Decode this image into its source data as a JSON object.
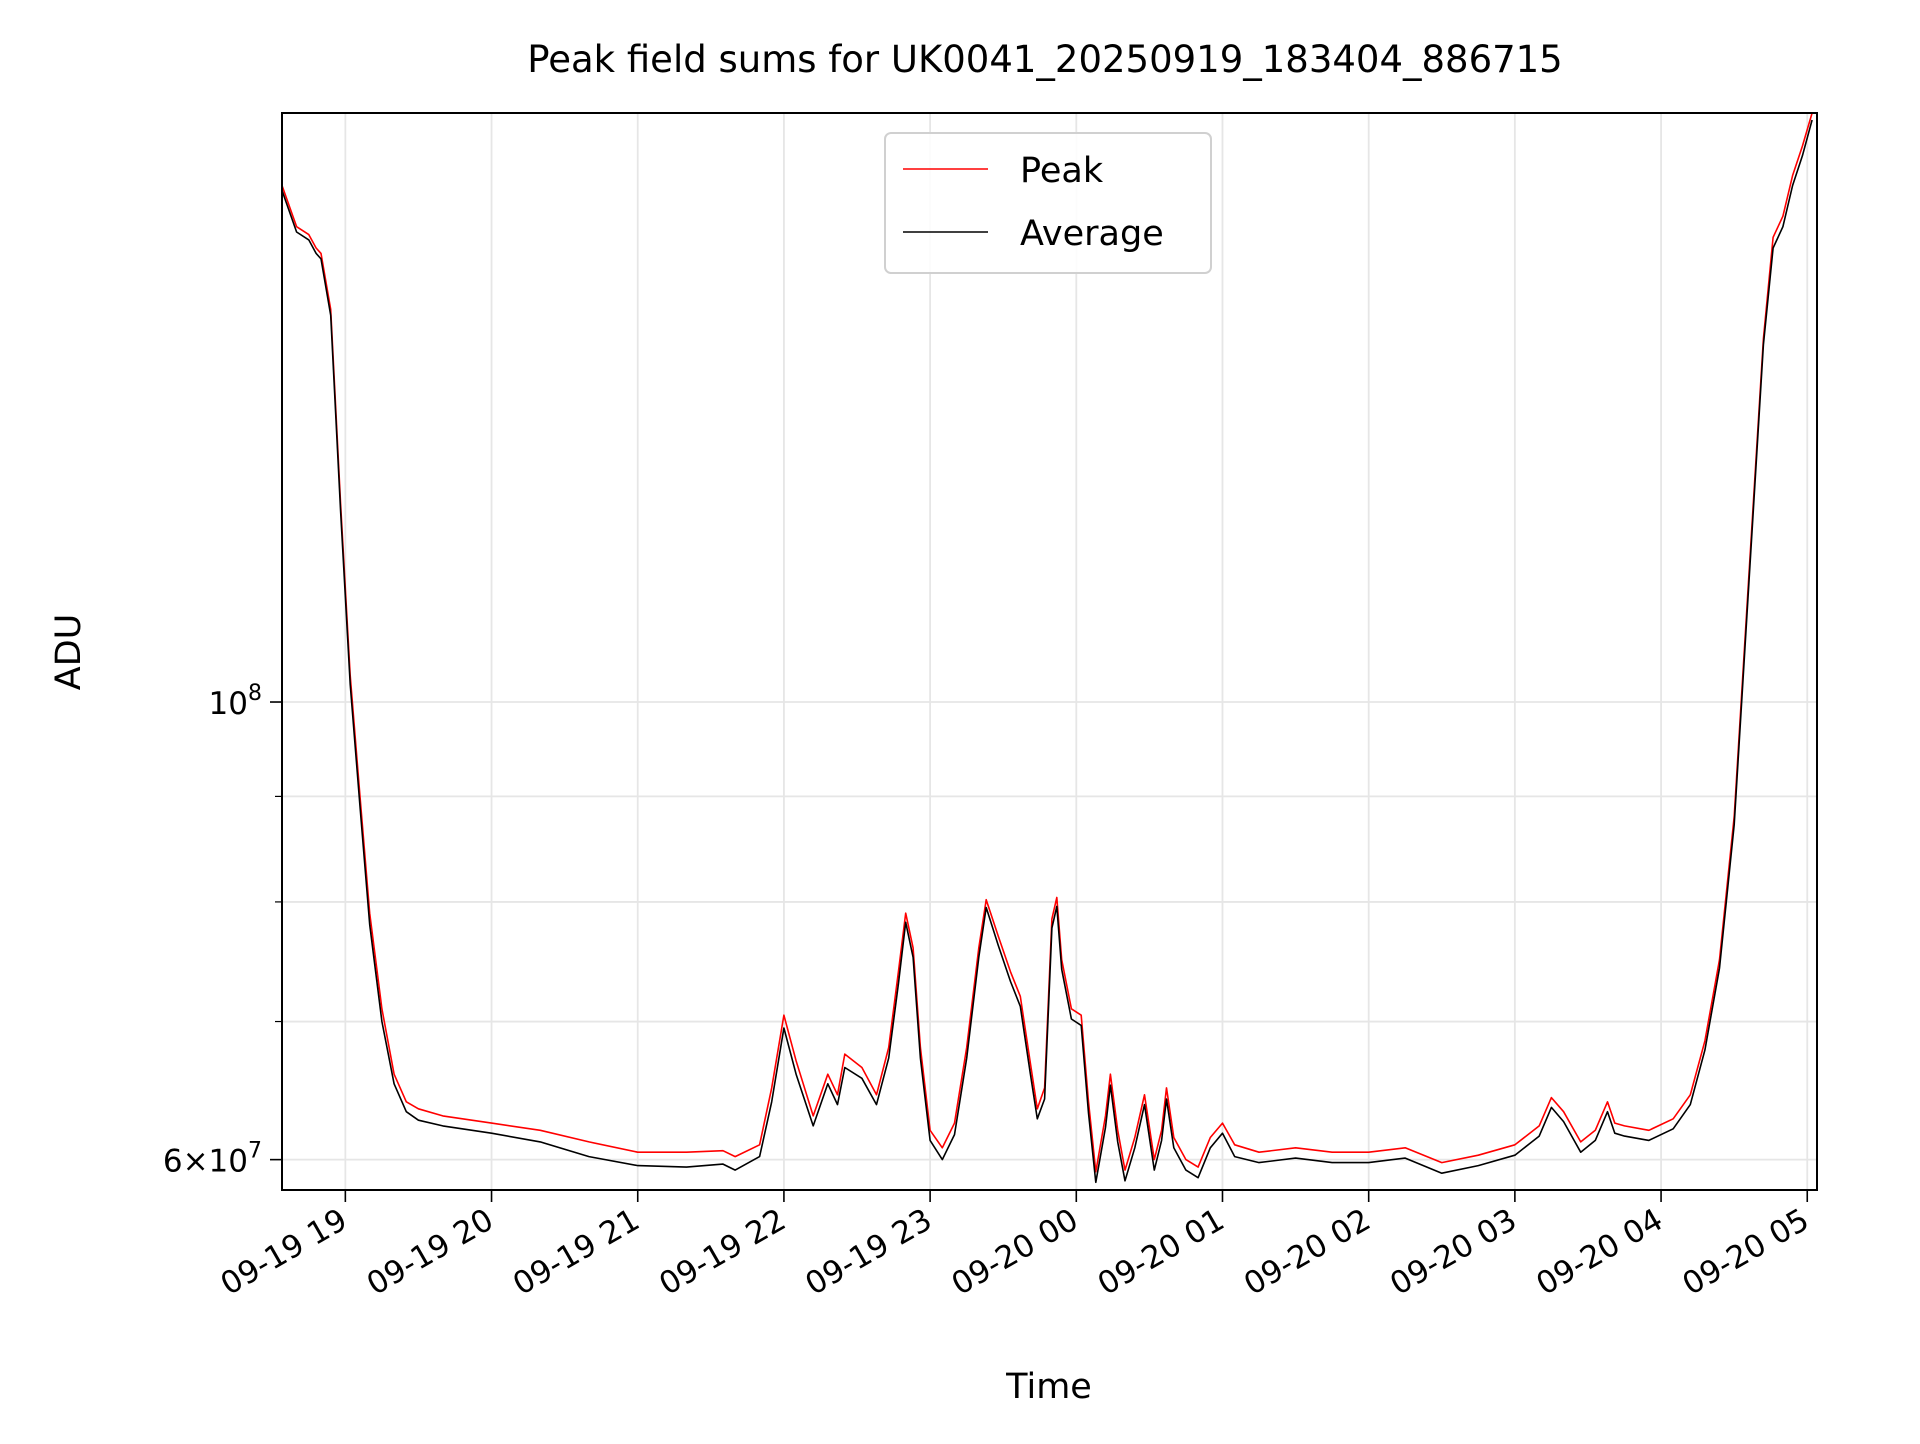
{
  "chart_data": {
    "type": "line",
    "title": "Peak field sums for UK0041_20250919_183404_886715",
    "xlabel": "Time",
    "ylabel": "ADU",
    "y_scale": "log",
    "ylim": [
      58000000,
      193000000
    ],
    "xlim": [
      "2025-09-19 18:34",
      "2025-09-20 05:04"
    ],
    "grid": true,
    "legend_position": "upper center",
    "x_ticks": [
      {
        "t": "2025-09-19 19:00",
        "label": "09-19 19"
      },
      {
        "t": "2025-09-19 20:00",
        "label": "09-19 20"
      },
      {
        "t": "2025-09-19 21:00",
        "label": "09-19 21"
      },
      {
        "t": "2025-09-19 22:00",
        "label": "09-19 22"
      },
      {
        "t": "2025-09-19 23:00",
        "label": "09-19 23"
      },
      {
        "t": "2025-09-20 00:00",
        "label": "09-20 00"
      },
      {
        "t": "2025-09-20 01:00",
        "label": "09-20 01"
      },
      {
        "t": "2025-09-20 02:00",
        "label": "09-20 02"
      },
      {
        "t": "2025-09-20 03:00",
        "label": "09-20 03"
      },
      {
        "t": "2025-09-20 04:00",
        "label": "09-20 04"
      },
      {
        "t": "2025-09-20 05:00",
        "label": "09-20 05"
      }
    ],
    "y_major_ticks": [
      {
        "value": 60000000,
        "base": "6",
        "mult": "×",
        "pow_base": "10",
        "exp": "7"
      },
      {
        "value": 100000000,
        "base": "",
        "mult": "",
        "pow_base": "10",
        "exp": "8"
      }
    ],
    "y_minor_ticks": [
      70000000,
      80000000,
      90000000
    ],
    "series": [
      {
        "name": "Peak",
        "color": "#ff0000",
        "points": [
          [
            "2025-09-19 18:34",
            178000000
          ],
          [
            "2025-09-19 18:40",
            170000000
          ],
          [
            "2025-09-19 18:45",
            168500000
          ],
          [
            "2025-09-19 18:48",
            166000000
          ],
          [
            "2025-09-19 18:50",
            165000000
          ],
          [
            "2025-09-19 18:54",
            155000000
          ],
          [
            "2025-09-19 18:58",
            125000000
          ],
          [
            "2025-09-19 19:02",
            103000000
          ],
          [
            "2025-09-19 19:06",
            90000000
          ],
          [
            "2025-09-19 19:10",
            79000000
          ],
          [
            "2025-09-19 19:15",
            71000000
          ],
          [
            "2025-09-19 19:20",
            66000000
          ],
          [
            "2025-09-19 19:25",
            64000000
          ],
          [
            "2025-09-19 19:30",
            63500000
          ],
          [
            "2025-09-19 19:40",
            63000000
          ],
          [
            "2025-09-19 20:00",
            62500000
          ],
          [
            "2025-09-19 20:20",
            62000000
          ],
          [
            "2025-09-19 20:40",
            61200000
          ],
          [
            "2025-09-19 21:00",
            60500000
          ],
          [
            "2025-09-19 21:20",
            60500000
          ],
          [
            "2025-09-19 21:35",
            60600000
          ],
          [
            "2025-09-19 21:40",
            60200000
          ],
          [
            "2025-09-19 21:50",
            61000000
          ],
          [
            "2025-09-19 21:55",
            65000000
          ],
          [
            "2025-09-19 22:00",
            70500000
          ],
          [
            "2025-09-19 22:05",
            67000000
          ],
          [
            "2025-09-19 22:12",
            63000000
          ],
          [
            "2025-09-19 22:18",
            66000000
          ],
          [
            "2025-09-19 22:22",
            64500000
          ],
          [
            "2025-09-19 22:25",
            67500000
          ],
          [
            "2025-09-19 22:32",
            66500000
          ],
          [
            "2025-09-19 22:38",
            64500000
          ],
          [
            "2025-09-19 22:43",
            68000000
          ],
          [
            "2025-09-19 22:47",
            74000000
          ],
          [
            "2025-09-19 22:50",
            79000000
          ],
          [
            "2025-09-19 22:53",
            76000000
          ],
          [
            "2025-09-19 22:56",
            68000000
          ],
          [
            "2025-09-19 23:00",
            62000000
          ],
          [
            "2025-09-19 23:05",
            60800000
          ],
          [
            "2025-09-19 23:10",
            62500000
          ],
          [
            "2025-09-19 23:15",
            68000000
          ],
          [
            "2025-09-19 23:20",
            76000000
          ],
          [
            "2025-09-19 23:23",
            80200000
          ],
          [
            "2025-09-19 23:28",
            77000000
          ],
          [
            "2025-09-19 23:33",
            74000000
          ],
          [
            "2025-09-19 23:37",
            72000000
          ],
          [
            "2025-09-19 23:41",
            67000000
          ],
          [
            "2025-09-19 23:44",
            63500000
          ],
          [
            "2025-09-19 23:47",
            65000000
          ],
          [
            "2025-09-19 23:50",
            78500000
          ],
          [
            "2025-09-19 23:52",
            80400000
          ],
          [
            "2025-09-19 23:54",
            75000000
          ],
          [
            "2025-09-19 23:58",
            71000000
          ],
          [
            "2025-09-20 00:02",
            70500000
          ],
          [
            "2025-09-20 00:05",
            64000000
          ],
          [
            "2025-09-20 00:08",
            59200000
          ],
          [
            "2025-09-20 00:12",
            63000000
          ],
          [
            "2025-09-20 00:14",
            66000000
          ],
          [
            "2025-09-20 00:17",
            62000000
          ],
          [
            "2025-09-20 00:20",
            59300000
          ],
          [
            "2025-09-20 00:24",
            61500000
          ],
          [
            "2025-09-20 00:28",
            64500000
          ],
          [
            "2025-09-20 00:32",
            60000000
          ],
          [
            "2025-09-20 00:35",
            62000000
          ],
          [
            "2025-09-20 00:37",
            65000000
          ],
          [
            "2025-09-20 00:40",
            61500000
          ],
          [
            "2025-09-20 00:45",
            60000000
          ],
          [
            "2025-09-20 00:50",
            59500000
          ],
          [
            "2025-09-20 00:55",
            61500000
          ],
          [
            "2025-09-20 01:00",
            62500000
          ],
          [
            "2025-09-20 01:05",
            61000000
          ],
          [
            "2025-09-20 01:15",
            60500000
          ],
          [
            "2025-09-20 01:30",
            60800000
          ],
          [
            "2025-09-20 01:45",
            60500000
          ],
          [
            "2025-09-20 02:00",
            60500000
          ],
          [
            "2025-09-20 02:15",
            60800000
          ],
          [
            "2025-09-20 02:30",
            59800000
          ],
          [
            "2025-09-20 02:45",
            60300000
          ],
          [
            "2025-09-20 03:00",
            61000000
          ],
          [
            "2025-09-20 03:10",
            62300000
          ],
          [
            "2025-09-20 03:15",
            64300000
          ],
          [
            "2025-09-20 03:20",
            63300000
          ],
          [
            "2025-09-20 03:27",
            61200000
          ],
          [
            "2025-09-20 03:33",
            62000000
          ],
          [
            "2025-09-20 03:38",
            64000000
          ],
          [
            "2025-09-20 03:41",
            62500000
          ],
          [
            "2025-09-20 03:45",
            62300000
          ],
          [
            "2025-09-20 03:55",
            62000000
          ],
          [
            "2025-09-20 04:05",
            62800000
          ],
          [
            "2025-09-20 04:12",
            64500000
          ],
          [
            "2025-09-20 04:18",
            68500000
          ],
          [
            "2025-09-20 04:24",
            75000000
          ],
          [
            "2025-09-20 04:30",
            88000000
          ],
          [
            "2025-09-20 04:36",
            115000000
          ],
          [
            "2025-09-20 04:42",
            150000000
          ],
          [
            "2025-09-20 04:46",
            168000000
          ],
          [
            "2025-09-20 04:50",
            172000000
          ],
          [
            "2025-09-20 04:54",
            180000000
          ],
          [
            "2025-09-20 04:58",
            186000000
          ],
          [
            "2025-09-20 05:02",
            193000000
          ]
        ]
      },
      {
        "name": "Average",
        "color": "#000000",
        "points": [
          [
            "2025-09-19 18:34",
            177000000
          ],
          [
            "2025-09-19 18:40",
            169000000
          ],
          [
            "2025-09-19 18:45",
            167500000
          ],
          [
            "2025-09-19 18:48",
            165000000
          ],
          [
            "2025-09-19 18:50",
            164000000
          ],
          [
            "2025-09-19 18:54",
            154000000
          ],
          [
            "2025-09-19 18:58",
            124000000
          ],
          [
            "2025-09-19 19:02",
            102000000
          ],
          [
            "2025-09-19 19:06",
            89000000
          ],
          [
            "2025-09-19 19:10",
            78000000
          ],
          [
            "2025-09-19 19:15",
            70000000
          ],
          [
            "2025-09-19 19:20",
            65300000
          ],
          [
            "2025-09-19 19:25",
            63300000
          ],
          [
            "2025-09-19 19:30",
            62700000
          ],
          [
            "2025-09-19 19:40",
            62300000
          ],
          [
            "2025-09-19 20:00",
            61800000
          ],
          [
            "2025-09-19 20:20",
            61200000
          ],
          [
            "2025-09-19 20:40",
            60200000
          ],
          [
            "2025-09-19 21:00",
            59600000
          ],
          [
            "2025-09-19 21:20",
            59500000
          ],
          [
            "2025-09-19 21:35",
            59700000
          ],
          [
            "2025-09-19 21:40",
            59300000
          ],
          [
            "2025-09-19 21:50",
            60200000
          ],
          [
            "2025-09-19 21:55",
            64000000
          ],
          [
            "2025-09-19 22:00",
            69500000
          ],
          [
            "2025-09-19 22:05",
            66000000
          ],
          [
            "2025-09-19 22:12",
            62300000
          ],
          [
            "2025-09-19 22:18",
            65300000
          ],
          [
            "2025-09-19 22:22",
            63800000
          ],
          [
            "2025-09-19 22:25",
            66500000
          ],
          [
            "2025-09-19 22:32",
            65700000
          ],
          [
            "2025-09-19 22:38",
            63800000
          ],
          [
            "2025-09-19 22:43",
            67200000
          ],
          [
            "2025-09-19 22:47",
            73000000
          ],
          [
            "2025-09-19 22:50",
            78200000
          ],
          [
            "2025-09-19 22:53",
            75200000
          ],
          [
            "2025-09-19 22:56",
            67200000
          ],
          [
            "2025-09-19 23:00",
            61300000
          ],
          [
            "2025-09-19 23:05",
            60000000
          ],
          [
            "2025-09-19 23:10",
            61700000
          ],
          [
            "2025-09-19 23:15",
            67200000
          ],
          [
            "2025-09-19 23:20",
            75200000
          ],
          [
            "2025-09-19 23:23",
            79500000
          ],
          [
            "2025-09-19 23:28",
            76200000
          ],
          [
            "2025-09-19 23:33",
            73200000
          ],
          [
            "2025-09-19 23:37",
            71200000
          ],
          [
            "2025-09-19 23:41",
            66200000
          ],
          [
            "2025-09-19 23:44",
            62800000
          ],
          [
            "2025-09-19 23:47",
            64200000
          ],
          [
            "2025-09-19 23:50",
            77700000
          ],
          [
            "2025-09-19 23:52",
            79600000
          ],
          [
            "2025-09-19 23:54",
            74200000
          ],
          [
            "2025-09-19 23:58",
            70200000
          ],
          [
            "2025-09-20 00:02",
            69700000
          ],
          [
            "2025-09-20 00:05",
            63200000
          ],
          [
            "2025-09-20 00:08",
            58500000
          ],
          [
            "2025-09-20 00:12",
            62200000
          ],
          [
            "2025-09-20 00:14",
            65200000
          ],
          [
            "2025-09-20 00:17",
            61200000
          ],
          [
            "2025-09-20 00:20",
            58600000
          ],
          [
            "2025-09-20 00:24",
            60800000
          ],
          [
            "2025-09-20 00:28",
            63800000
          ],
          [
            "2025-09-20 00:32",
            59300000
          ],
          [
            "2025-09-20 00:35",
            61300000
          ],
          [
            "2025-09-20 00:37",
            64200000
          ],
          [
            "2025-09-20 00:40",
            60800000
          ],
          [
            "2025-09-20 00:45",
            59300000
          ],
          [
            "2025-09-20 00:50",
            58800000
          ],
          [
            "2025-09-20 00:55",
            60800000
          ],
          [
            "2025-09-20 01:00",
            61800000
          ],
          [
            "2025-09-20 01:05",
            60200000
          ],
          [
            "2025-09-20 01:15",
            59800000
          ],
          [
            "2025-09-20 01:30",
            60100000
          ],
          [
            "2025-09-20 01:45",
            59800000
          ],
          [
            "2025-09-20 02:00",
            59800000
          ],
          [
            "2025-09-20 02:15",
            60100000
          ],
          [
            "2025-09-20 02:30",
            59100000
          ],
          [
            "2025-09-20 02:45",
            59600000
          ],
          [
            "2025-09-20 03:00",
            60300000
          ],
          [
            "2025-09-20 03:10",
            61600000
          ],
          [
            "2025-09-20 03:15",
            63600000
          ],
          [
            "2025-09-20 03:20",
            62600000
          ],
          [
            "2025-09-20 03:27",
            60500000
          ],
          [
            "2025-09-20 03:33",
            61300000
          ],
          [
            "2025-09-20 03:38",
            63300000
          ],
          [
            "2025-09-20 03:41",
            61800000
          ],
          [
            "2025-09-20 03:45",
            61600000
          ],
          [
            "2025-09-20 03:55",
            61300000
          ],
          [
            "2025-09-20 04:05",
            62100000
          ],
          [
            "2025-09-20 04:12",
            63800000
          ],
          [
            "2025-09-20 04:18",
            67800000
          ],
          [
            "2025-09-20 04:24",
            74300000
          ],
          [
            "2025-09-20 04:30",
            87200000
          ],
          [
            "2025-09-20 04:36",
            114000000
          ],
          [
            "2025-09-20 04:42",
            149000000
          ],
          [
            "2025-09-20 04:46",
            166000000
          ],
          [
            "2025-09-20 04:50",
            170000000
          ],
          [
            "2025-09-20 04:54",
            178000000
          ],
          [
            "2025-09-20 04:58",
            184000000
          ],
          [
            "2025-09-20 05:02",
            191500000
          ]
        ]
      }
    ]
  }
}
